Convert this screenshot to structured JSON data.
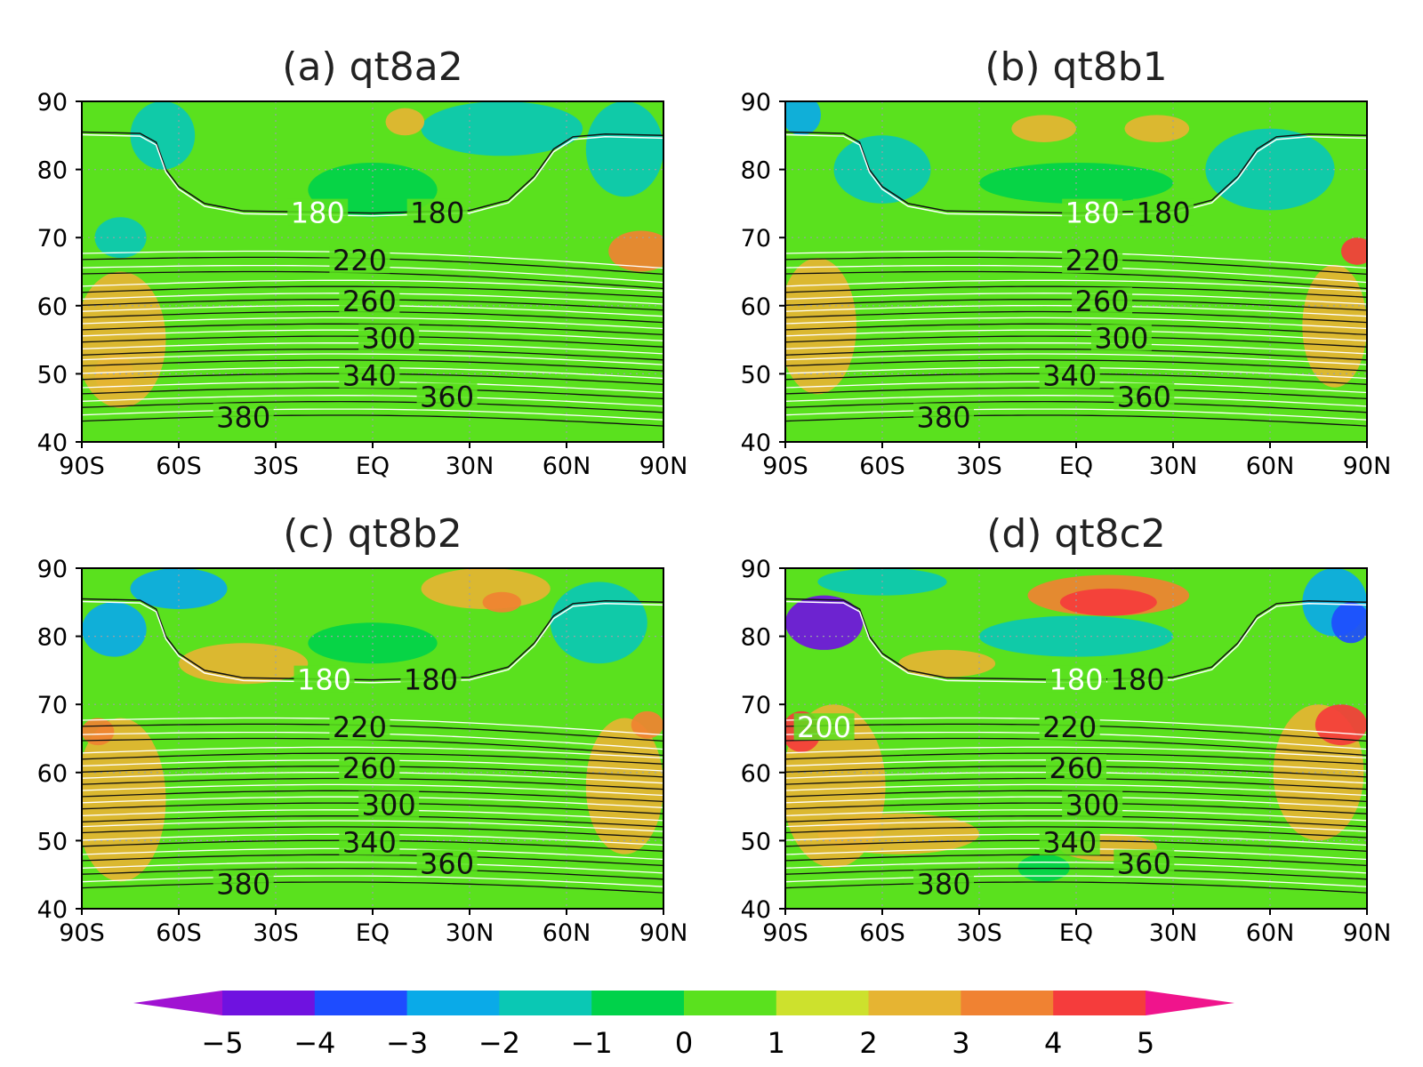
{
  "chart_data": [
    {
      "type": "heatmap",
      "title": "(a) qt8a2",
      "x_ticks": [
        "90S",
        "60S",
        "30S",
        "EQ",
        "30N",
        "60N",
        "90N"
      ],
      "y_ticks": [
        "40",
        "50",
        "60",
        "70",
        "80",
        "90"
      ],
      "xlim": [
        -90,
        90
      ],
      "ylim": [
        40,
        90
      ],
      "contour_labels": [
        {
          "value": "180",
          "lat": -17,
          "y": 73.6,
          "color": "white"
        },
        {
          "value": "180",
          "lat": 20,
          "y": 73.6,
          "color": "black"
        },
        {
          "value": "220",
          "lat": -4,
          "y": 66.6,
          "color": "black"
        },
        {
          "value": "260",
          "lat": -1,
          "y": 60.6,
          "color": "black"
        },
        {
          "value": "300",
          "lat": 5,
          "y": 55.2,
          "color": "black"
        },
        {
          "value": "340",
          "lat": -1,
          "y": 49.7,
          "color": "black"
        },
        {
          "value": "360",
          "lat": 23,
          "y": 46.6,
          "color": "black"
        },
        {
          "value": "380",
          "lat": -40,
          "y": 43.6,
          "color": "black"
        }
      ],
      "anomaly_blobs": [
        {
          "lat": -78,
          "y": 55,
          "rx": 14,
          "ry": 10,
          "v": 2
        },
        {
          "lat": -80,
          "y": 50,
          "rx": 6,
          "ry": 3,
          "v": 2.5
        },
        {
          "lat": -65,
          "y": 85,
          "rx": 10,
          "ry": 5,
          "v": -1.5
        },
        {
          "lat": -78,
          "y": 70,
          "rx": 8,
          "ry": 3,
          "v": -2
        },
        {
          "lat": 40,
          "y": 86,
          "rx": 25,
          "ry": 4,
          "v": -1.5
        },
        {
          "lat": 10,
          "y": 87,
          "rx": 6,
          "ry": 2,
          "v": 2
        },
        {
          "lat": 78,
          "y": 83,
          "rx": 12,
          "ry": 7,
          "v": -2
        },
        {
          "lat": 83,
          "y": 68,
          "rx": 10,
          "ry": 3,
          "v": 3.5
        },
        {
          "lat": 0,
          "y": 77,
          "rx": 20,
          "ry": 4,
          "v": -0.7
        }
      ]
    },
    {
      "type": "heatmap",
      "title": "(b) qt8b1",
      "x_ticks": [
        "90S",
        "60S",
        "30S",
        "EQ",
        "30N",
        "60N",
        "90N"
      ],
      "y_ticks": [
        "40",
        "50",
        "60",
        "70",
        "80",
        "90"
      ],
      "xlim": [
        -90,
        90
      ],
      "ylim": [
        40,
        90
      ],
      "contour_labels": [
        {
          "value": "180",
          "lat": 5,
          "y": 73.6,
          "color": "white"
        },
        {
          "value": "180",
          "lat": 27,
          "y": 73.6,
          "color": "black"
        },
        {
          "value": "220",
          "lat": 5,
          "y": 66.6,
          "color": "black"
        },
        {
          "value": "260",
          "lat": 8,
          "y": 60.6,
          "color": "black"
        },
        {
          "value": "300",
          "lat": 14,
          "y": 55.2,
          "color": "black"
        },
        {
          "value": "340",
          "lat": -2,
          "y": 49.7,
          "color": "black"
        },
        {
          "value": "360",
          "lat": 21,
          "y": 46.6,
          "color": "black"
        },
        {
          "value": "380",
          "lat": -41,
          "y": 43.6,
          "color": "black"
        }
      ],
      "anomaly_blobs": [
        {
          "lat": -80,
          "y": 57,
          "rx": 12,
          "ry": 10,
          "v": 2.3
        },
        {
          "lat": 80,
          "y": 57,
          "rx": 10,
          "ry": 9,
          "v": 2
        },
        {
          "lat": -85,
          "y": 88,
          "rx": 6,
          "ry": 3,
          "v": -3
        },
        {
          "lat": -60,
          "y": 80,
          "rx": 15,
          "ry": 5,
          "v": -1.5
        },
        {
          "lat": 60,
          "y": 80,
          "rx": 20,
          "ry": 6,
          "v": -1.5
        },
        {
          "lat": 0,
          "y": 78,
          "rx": 30,
          "ry": 3,
          "v": -1
        },
        {
          "lat": -10,
          "y": 86,
          "rx": 10,
          "ry": 2,
          "v": 2
        },
        {
          "lat": 25,
          "y": 86,
          "rx": 10,
          "ry": 2,
          "v": 2
        },
        {
          "lat": 87,
          "y": 68,
          "rx": 5,
          "ry": 2,
          "v": 4
        }
      ]
    },
    {
      "type": "heatmap",
      "title": "(c) qt8b2",
      "x_ticks": [
        "90S",
        "60S",
        "30S",
        "EQ",
        "30N",
        "60N",
        "90N"
      ],
      "y_ticks": [
        "40",
        "50",
        "60",
        "70",
        "80",
        "90"
      ],
      "xlim": [
        -90,
        90
      ],
      "ylim": [
        40,
        90
      ],
      "contour_labels": [
        {
          "value": "180",
          "lat": -15,
          "y": 73.6,
          "color": "white"
        },
        {
          "value": "180",
          "lat": 18,
          "y": 73.6,
          "color": "black"
        },
        {
          "value": "220",
          "lat": -4,
          "y": 66.6,
          "color": "black"
        },
        {
          "value": "260",
          "lat": -1,
          "y": 60.6,
          "color": "black"
        },
        {
          "value": "300",
          "lat": 5,
          "y": 55.2,
          "color": "black"
        },
        {
          "value": "340",
          "lat": -1,
          "y": 49.7,
          "color": "black"
        },
        {
          "value": "360",
          "lat": 23,
          "y": 46.6,
          "color": "black"
        },
        {
          "value": "380",
          "lat": -40,
          "y": 43.6,
          "color": "black"
        }
      ],
      "anomaly_blobs": [
        {
          "lat": -78,
          "y": 56,
          "rx": 14,
          "ry": 12,
          "v": 2
        },
        {
          "lat": 78,
          "y": 58,
          "rx": 12,
          "ry": 10,
          "v": 2
        },
        {
          "lat": -85,
          "y": 66,
          "rx": 5,
          "ry": 2,
          "v": 3.5
        },
        {
          "lat": 85,
          "y": 67,
          "rx": 5,
          "ry": 2,
          "v": 3
        },
        {
          "lat": -80,
          "y": 81,
          "rx": 10,
          "ry": 4,
          "v": -3
        },
        {
          "lat": -60,
          "y": 87,
          "rx": 15,
          "ry": 3,
          "v": -2.5
        },
        {
          "lat": 70,
          "y": 82,
          "rx": 15,
          "ry": 6,
          "v": -2
        },
        {
          "lat": 35,
          "y": 87,
          "rx": 20,
          "ry": 3,
          "v": 2
        },
        {
          "lat": 40,
          "y": 85,
          "rx": 6,
          "ry": 1.5,
          "v": 3
        },
        {
          "lat": -40,
          "y": 76,
          "rx": 20,
          "ry": 3,
          "v": 2
        },
        {
          "lat": 0,
          "y": 79,
          "rx": 20,
          "ry": 3,
          "v": -1
        }
      ]
    },
    {
      "type": "heatmap",
      "title": "(d) qt8c2",
      "x_ticks": [
        "90S",
        "60S",
        "30S",
        "EQ",
        "30N",
        "60N",
        "90N"
      ],
      "y_ticks": [
        "40",
        "50",
        "60",
        "70",
        "80",
        "90"
      ],
      "xlim": [
        -90,
        90
      ],
      "ylim": [
        40,
        90
      ],
      "contour_labels": [
        {
          "value": "200",
          "lat": -78,
          "y": 66.6,
          "color": "white"
        },
        {
          "value": "180",
          "lat": 0,
          "y": 73.6,
          "color": "white"
        },
        {
          "value": "180",
          "lat": 19,
          "y": 73.6,
          "color": "black"
        },
        {
          "value": "220",
          "lat": -2,
          "y": 66.6,
          "color": "black"
        },
        {
          "value": "260",
          "lat": 0,
          "y": 60.6,
          "color": "black"
        },
        {
          "value": "300",
          "lat": 5,
          "y": 55.2,
          "color": "black"
        },
        {
          "value": "340",
          "lat": -2,
          "y": 49.7,
          "color": "black"
        },
        {
          "value": "360",
          "lat": 21,
          "y": 46.6,
          "color": "black"
        },
        {
          "value": "380",
          "lat": -41,
          "y": 43.6,
          "color": "black"
        }
      ],
      "anomaly_blobs": [
        {
          "lat": -75,
          "y": 58,
          "rx": 16,
          "ry": 12,
          "v": 2.5
        },
        {
          "lat": -55,
          "y": 51,
          "rx": 25,
          "ry": 3,
          "v": 2
        },
        {
          "lat": 10,
          "y": 49,
          "rx": 15,
          "ry": 2,
          "v": 2
        },
        {
          "lat": 75,
          "y": 60,
          "rx": 14,
          "ry": 10,
          "v": 2.5
        },
        {
          "lat": -85,
          "y": 66,
          "rx": 6,
          "ry": 3,
          "v": 4
        },
        {
          "lat": 82,
          "y": 67,
          "rx": 8,
          "ry": 3,
          "v": 4
        },
        {
          "lat": -78,
          "y": 82,
          "rx": 12,
          "ry": 4,
          "v": -4.5
        },
        {
          "lat": -60,
          "y": 88,
          "rx": 20,
          "ry": 2,
          "v": -2
        },
        {
          "lat": 80,
          "y": 85,
          "rx": 10,
          "ry": 5,
          "v": -3
        },
        {
          "lat": 85,
          "y": 82,
          "rx": 6,
          "ry": 3,
          "v": -4
        },
        {
          "lat": 10,
          "y": 86,
          "rx": 25,
          "ry": 3,
          "v": 3
        },
        {
          "lat": 10,
          "y": 85,
          "rx": 15,
          "ry": 2,
          "v": 4
        },
        {
          "lat": 0,
          "y": 80,
          "rx": 30,
          "ry": 3,
          "v": -1.5
        },
        {
          "lat": -40,
          "y": 76,
          "rx": 15,
          "ry": 2,
          "v": 2
        },
        {
          "lat": -10,
          "y": 46,
          "rx": 8,
          "ry": 2,
          "v": -1
        }
      ]
    }
  ],
  "colorbar": {
    "labels": [
      "−5",
      "−4",
      "−3",
      "−2",
      "−1",
      "0",
      "1",
      "2",
      "3",
      "4",
      "5"
    ],
    "levels": [
      -5,
      -4,
      -3,
      -2,
      -1,
      0,
      1,
      2,
      3,
      4,
      5
    ],
    "colors": [
      "#a012d2",
      "#6f12e0",
      "#1e4cff",
      "#0aaae8",
      "#0ac8b4",
      "#00d24a",
      "#5ae11e",
      "#cde12d",
      "#e6b432",
      "#f08232",
      "#f53c3c",
      "#f0148c"
    ]
  }
}
